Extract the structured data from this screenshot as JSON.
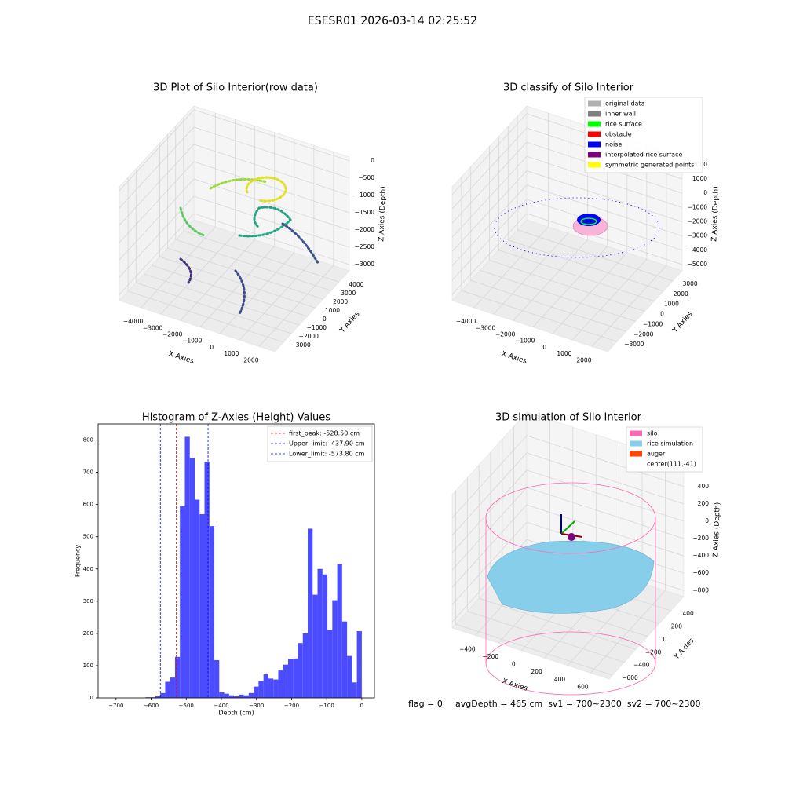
{
  "title": "ESESR01 2026-03-14 02:25:52",
  "footer": {
    "flag": "flag = 0",
    "stats": "avgDepth = 465 cm  sv1 = 700~2300  sv2 = 700~2300"
  },
  "chart_data": [
    {
      "type": "scatter3d",
      "title": "3D Plot of Silo Interior(row data)",
      "xlabel": "X Axies",
      "ylabel": "Y Axies",
      "zlabel": "Z Axies (Depth)",
      "grid": true,
      "xlim": [
        -5100,
        2800
      ],
      "ylim": [
        -4100,
        5300
      ],
      "zlim": [
        -3180,
        110
      ],
      "xticks": [
        {
          "value": -4000,
          "label": "−4000"
        },
        {
          "value": -3000,
          "label": "−3000"
        },
        {
          "value": -2000,
          "label": "−2000"
        },
        {
          "value": -1000,
          "label": "−1000"
        },
        0,
        1000,
        2000
      ],
      "yticks": [
        {
          "value": -3000,
          "label": "−3000"
        },
        {
          "value": -2000,
          "label": "−2000"
        },
        {
          "value": -1000,
          "label": "−1000"
        },
        0,
        1000,
        2000,
        3000,
        4000
      ],
      "zticks": [
        {
          "value": -3000,
          "label": "−3000"
        },
        {
          "value": -2500,
          "label": "−2500"
        },
        {
          "value": -2000,
          "label": "−2000"
        },
        {
          "value": -1500,
          "label": "−1500"
        },
        {
          "value": -1000,
          "label": "−1000"
        },
        {
          "value": -500,
          "label": "−500"
        },
        0
      ]
    },
    {
      "type": "scatter3d",
      "title": "3D classify of Silo Interior",
      "xlabel": "X Axies",
      "ylabel": "Y Axies",
      "zlabel": "Z Axies (Depth)",
      "grid": true,
      "xlim": [
        -5100,
        2800
      ],
      "ylim": [
        -4000,
        4000
      ],
      "zlim": [
        -5440,
        2540
      ],
      "xticks": [
        {
          "value": -4000,
          "label": "−4000"
        },
        {
          "value": -3000,
          "label": "−3000"
        },
        {
          "value": -2000,
          "label": "−2000"
        },
        {
          "value": -1000,
          "label": "−1000"
        },
        0,
        1000,
        2000
      ],
      "yticks": [
        {
          "value": -3000,
          "label": "−3000"
        },
        {
          "value": -2000,
          "label": "−2000"
        },
        {
          "value": -1000,
          "label": "−1000"
        },
        0,
        1000,
        2000,
        3000
      ],
      "zticks": [
        {
          "value": -5000,
          "label": "−5000"
        },
        {
          "value": -4000,
          "label": "−4000"
        },
        {
          "value": -3000,
          "label": "−3000"
        },
        {
          "value": -2000,
          "label": "−2000"
        },
        {
          "value": -1000,
          "label": "−1000"
        },
        0,
        1000,
        2000
      ],
      "legend": {
        "loc": "upper right",
        "entries": [
          {
            "name": "original data",
            "color": "#b0b0b0"
          },
          {
            "name": "inner wall",
            "color": "#808080"
          },
          {
            "name": "rice surface",
            "color": "#00ff00"
          },
          {
            "name": "obstacle",
            "color": "#ff0000"
          },
          {
            "name": "noise",
            "color": "#0000ff"
          },
          {
            "name": "interpolated rice surface",
            "color": "#800080"
          },
          {
            "name": "symmetric generated points",
            "color": "#ffff00"
          }
        ]
      }
    },
    {
      "type": "histogram",
      "title": "Histogram of Z-Axies (Height) Values",
      "xlabel": "Depth (cm)",
      "ylabel": "Frequency",
      "color": "#4b4bff",
      "xlim": [
        -751,
        36
      ],
      "ylim": [
        0,
        850
      ],
      "xticks": [
        {
          "value": -700,
          "label": "−700"
        },
        {
          "value": -600,
          "label": "−600"
        },
        {
          "value": -500,
          "label": "−500"
        },
        {
          "value": -400,
          "label": "−400"
        },
        {
          "value": -300,
          "label": "−300"
        },
        {
          "value": -200,
          "label": "−200"
        },
        {
          "value": -100,
          "label": "−100"
        },
        0
      ],
      "yticks": [
        0,
        100,
        200,
        300,
        400,
        500,
        600,
        700,
        800
      ],
      "bins": [
        -700,
        -686,
        -672,
        -658,
        -644,
        -630,
        -616,
        -602,
        -588,
        -574,
        -560,
        -546,
        -532,
        -518,
        -504,
        -490,
        -476,
        -462,
        -448,
        -434,
        -420,
        -406,
        -392,
        -378,
        -364,
        -350,
        -336,
        -322,
        -308,
        -294,
        -280,
        -266,
        -252,
        -238,
        -224,
        -210,
        -196,
        -182,
        -168,
        -154,
        -140,
        -126,
        -112,
        -98,
        -84,
        -70,
        -56,
        -42,
        -28,
        -14,
        0
      ],
      "values": [
        0,
        0,
        0,
        0,
        0,
        0,
        2,
        2,
        5,
        15,
        50,
        63,
        127,
        595,
        810,
        745,
        615,
        570,
        732,
        533,
        117,
        18,
        13,
        8,
        5,
        10,
        8,
        15,
        35,
        52,
        73,
        60,
        57,
        85,
        103,
        120,
        122,
        170,
        200,
        525,
        320,
        400,
        383,
        210,
        303,
        415,
        237,
        130,
        48,
        207
      ],
      "lines": [
        {
          "name": "first_peak: -528.50 cm",
          "value": -528.5,
          "color": "#ff0000"
        },
        {
          "name": "Upper_limit: -437.90 cm",
          "value": -437.9,
          "color": "#0000ff"
        },
        {
          "name": "Lower_limit: -573.80 cm",
          "value": -573.8,
          "color": "#0000ff"
        }
      ],
      "legend": "upper right"
    },
    {
      "type": "surface3d",
      "title": "3D simulation of Silo Interior",
      "xlabel": "X Axies",
      "ylabel": "Y Axies",
      "zlabel": "Z Axies (Depth)",
      "grid": true,
      "xlim": [
        -600,
        760
      ],
      "ylim": [
        -660,
        620
      ],
      "zlim": [
        -870,
        670
      ],
      "xticks": [
        {
          "value": -400,
          "label": "−400"
        },
        {
          "value": -200,
          "label": "−200"
        },
        0,
        200,
        400,
        600
      ],
      "yticks": [
        {
          "value": -600,
          "label": "−600"
        },
        {
          "value": -400,
          "label": "−400"
        },
        {
          "value": -200,
          "label": "−200"
        },
        0,
        200,
        400
      ],
      "zticks": [
        {
          "value": -800,
          "label": "−800"
        },
        {
          "value": -600,
          "label": "−600"
        },
        {
          "value": -400,
          "label": "−400"
        },
        {
          "value": -200,
          "label": "−200"
        },
        0,
        200,
        400
      ],
      "legend": {
        "loc": "upper right",
        "entries": [
          {
            "name": "silo",
            "color": "#ff69b4"
          },
          {
            "name": "rice simulation",
            "color": "#87ceeb"
          },
          {
            "name": "auger",
            "color": "#ff4500"
          },
          {
            "name": "center(111,-41)"
          }
        ]
      }
    }
  ]
}
